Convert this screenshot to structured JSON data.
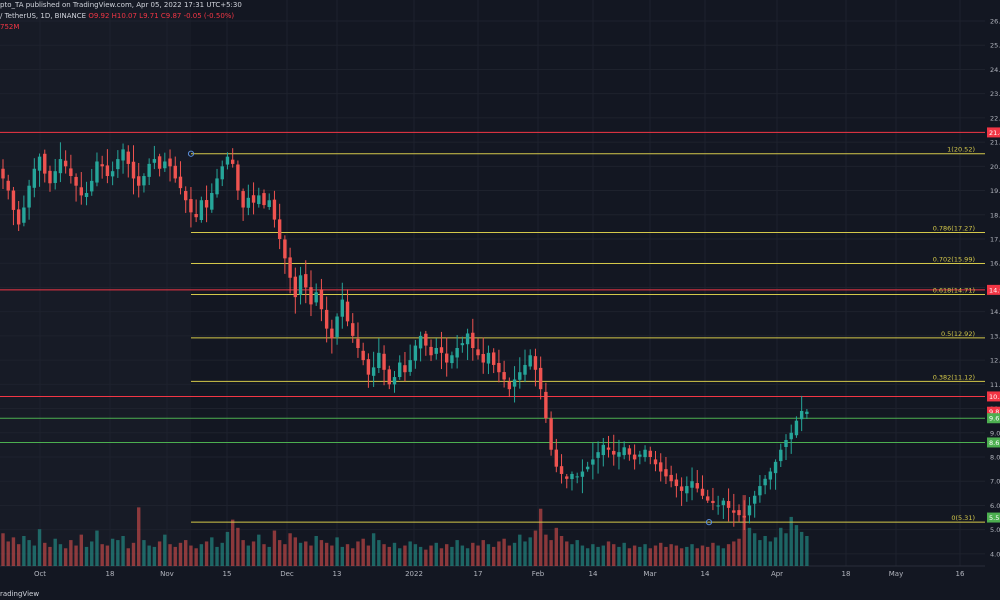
{
  "header": {
    "publisher": "pto_TA published on TradingView.com, Apr 05, 2022 17:31 UTC+5:30",
    "symbol": "/ TetherUS, 1D, BINANCE",
    "ohlc": "O9.92  H10.07  L9.71  C9.87  -0.05 (-0.50%)",
    "volume": "752M"
  },
  "footer": {
    "brand": "radingView"
  },
  "colors": {
    "background": "#131722",
    "up": "#26a69a",
    "down": "#ef5350",
    "fib": "#d4c84a",
    "resistance": "#f23645",
    "support": "#4caf50"
  },
  "chart_data": {
    "type": "candlestick",
    "ylim": [
      3.5,
      26
    ],
    "y_ticks": [
      "4.0",
      "5.0",
      "6.0",
      "7.0",
      "8.0",
      "9.0",
      "10.0",
      "11.0",
      "12.0",
      "13.0",
      "14.0",
      "15.0",
      "16.0",
      "17.0",
      "18.0",
      "19.0",
      "20.0",
      "21.0",
      "22.0",
      "23.0",
      "24.0",
      "25.0",
      "26.0"
    ],
    "x_ticks": [
      "Oct",
      "18",
      "Nov",
      "15",
      "Dec",
      "13",
      "2022",
      "17",
      "Feb",
      "14",
      "Mar",
      "14",
      "Apr",
      "18",
      "May",
      "16"
    ],
    "fib_levels": [
      {
        "label": "1(20.52)",
        "value": 20.52
      },
      {
        "label": "0.786(17.27)",
        "value": 17.27
      },
      {
        "label": "0.702(15.99)",
        "value": 15.99
      },
      {
        "label": "0.618(14.71)",
        "value": 14.71
      },
      {
        "label": "0.5(12.92)",
        "value": 12.92
      },
      {
        "label": "0.382(11.12)",
        "value": 11.12
      },
      {
        "label": "0(5.31)",
        "value": 5.31
      }
    ],
    "resistance_lines": [
      21.4,
      14.9,
      10.5
    ],
    "support_lines": [
      9.6,
      8.6
    ],
    "price_badges": [
      {
        "text": "21.4",
        "value": 21.4,
        "color": "#f23645"
      },
      {
        "text": "14.9",
        "value": 14.9,
        "color": "#f23645"
      },
      {
        "text": "10.5",
        "value": 10.5,
        "color": "#f23645"
      },
      {
        "text": "9.87",
        "value": 9.87,
        "color": "#f23645"
      },
      {
        "text": "9.6",
        "value": 9.6,
        "color": "#4caf50"
      },
      {
        "text": "8.6",
        "value": 8.6,
        "color": "#4caf50"
      },
      {
        "text": "5.5",
        "value": 5.5,
        "color": "#4caf50"
      }
    ],
    "closes": [
      19.5,
      19.0,
      18.2,
      17.6,
      18.3,
      19.2,
      19.9,
      20.4,
      19.7,
      19.3,
      19.8,
      20.3,
      20.0,
      19.6,
      19.2,
      18.8,
      18.9,
      19.4,
      20.2,
      20.0,
      19.6,
      19.8,
      20.3,
      20.7,
      20.1,
      19.5,
      19.2,
      19.6,
      20.1,
      20.3,
      19.9,
      20.2,
      20.0,
      19.5,
      19.1,
      18.6,
      18.1,
      17.9,
      18.6,
      18.3,
      18.9,
      19.5,
      20.0,
      20.4,
      20.1,
      19.0,
      18.3,
      18.7,
      18.5,
      18.8,
      18.4,
      18.6,
      17.8,
      17.0,
      16.2,
      15.4,
      14.6,
      15.5,
      15.0,
      14.3,
      14.8,
      14.1,
      13.3,
      12.9,
      13.8,
      14.5,
      13.6,
      13.0,
      12.5,
      12.0,
      11.4,
      11.7,
      12.3,
      11.6,
      11.0,
      11.3,
      11.9,
      11.5,
      12.0,
      12.6,
      13.0,
      12.6,
      12.2,
      12.5,
      12.3,
      11.9,
      12.2,
      12.5,
      12.7,
      13.1,
      12.5,
      12.2,
      11.9,
      12.3,
      11.8,
      11.5,
      11.2,
      10.8,
      11.2,
      11.5,
      11.8,
      12.2,
      11.6,
      10.8,
      9.6,
      8.3,
      7.6,
      7.3,
      7.1,
      7.3,
      7.2,
      7.4,
      7.6,
      7.9,
      8.2,
      8.5,
      8.3,
      8.1,
      8.2,
      8.4,
      8.1,
      7.9,
      8.1,
      8.3,
      8.0,
      7.7,
      7.4,
      7.2,
      7.0,
      6.8,
      6.6,
      6.8,
      7.0,
      6.7,
      6.4,
      6.2,
      6.1,
      6.0,
      6.2,
      5.9,
      5.7,
      5.6,
      5.5,
      6.0,
      6.4,
      6.8,
      7.1,
      7.4,
      7.8,
      8.3,
      8.7,
      9.0,
      9.5,
      9.9,
      9.87
    ],
    "volumes": [
      2.4,
      1.8,
      2.1,
      1.6,
      2.2,
      1.9,
      1.5,
      2.7,
      1.7,
      1.4,
      2.0,
      1.6,
      1.3,
      1.9,
      1.5,
      2.3,
      1.4,
      1.8,
      2.6,
      1.6,
      1.5,
      2.0,
      1.9,
      2.2,
      1.3,
      1.7,
      4.3,
      1.9,
      1.5,
      1.4,
      1.8,
      2.3,
      1.6,
      1.4,
      1.7,
      1.9,
      1.5,
      1.3,
      1.6,
      1.8,
      2.1,
      1.4,
      1.7,
      2.5,
      3.4,
      2.8,
      1.9,
      1.5,
      1.8,
      2.3,
      1.6,
      1.4,
      2.6,
      1.9,
      1.6,
      2.4,
      2.1,
      1.7,
      1.8,
      1.5,
      2.2,
      1.9,
      1.7,
      1.5,
      2.1,
      1.4,
      1.6,
      1.3,
      1.8,
      2.0,
      1.5,
      2.4,
      1.9,
      1.6,
      1.4,
      1.7,
      1.3,
      1.5,
      1.8,
      1.6,
      1.4,
      1.2,
      1.5,
      1.7,
      1.3,
      1.6,
      1.4,
      1.9,
      1.5,
      1.3,
      1.7,
      1.5,
      1.9,
      1.6,
      1.4,
      1.8,
      2.0,
      1.5,
      1.7,
      2.3,
      1.8,
      2.1,
      2.6,
      4.2,
      2.3,
      1.9,
      2.8,
      2.2,
      1.8,
      1.6,
      1.9,
      1.5,
      1.3,
      1.6,
      1.4,
      1.5,
      1.8,
      1.6,
      1.4,
      1.7,
      1.3,
      1.5,
      1.4,
      1.6,
      1.3,
      1.5,
      1.7,
      1.4,
      1.6,
      1.5,
      1.3,
      1.4,
      1.6,
      1.3,
      1.5,
      1.4,
      1.7,
      1.5,
      1.3,
      1.6,
      1.8,
      2.0,
      5.2,
      2.8,
      2.4,
      1.9,
      2.2,
      1.8,
      2.1,
      2.8,
      2.4,
      3.6,
      3.0,
      2.5,
      2.2
    ]
  }
}
